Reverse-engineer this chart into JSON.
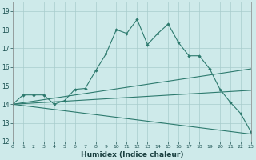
{
  "line1_x": [
    0,
    1,
    2,
    3,
    4,
    5,
    6,
    7,
    8,
    9,
    10,
    11,
    12,
    13,
    14,
    15,
    16,
    17,
    18,
    19,
    20,
    21,
    22,
    23
  ],
  "line1_y": [
    14.0,
    14.5,
    14.5,
    14.5,
    14.0,
    14.2,
    14.8,
    14.85,
    15.8,
    16.7,
    18.0,
    17.8,
    18.55,
    17.2,
    17.8,
    18.3,
    17.3,
    16.6,
    16.6,
    15.9,
    14.8,
    14.1,
    13.5,
    12.5
  ],
  "line2_x": [
    0,
    23
  ],
  "line2_y": [
    14.0,
    15.9
  ],
  "line3_x": [
    0,
    23
  ],
  "line3_y": [
    14.0,
    14.75
  ],
  "line4_x": [
    0,
    23
  ],
  "line4_y": [
    14.0,
    12.4
  ],
  "color": "#2d7a6e",
  "bg_color": "#ceeaea",
  "grid_color": "#a8cccc",
  "xlabel": "Humidex (Indice chaleur)",
  "xlim": [
    0,
    23
  ],
  "ylim": [
    12,
    19.5
  ],
  "yticks": [
    12,
    13,
    14,
    15,
    16,
    17,
    18,
    19
  ],
  "xticks": [
    0,
    1,
    2,
    3,
    4,
    5,
    6,
    7,
    8,
    9,
    10,
    11,
    12,
    13,
    14,
    15,
    16,
    17,
    18,
    19,
    20,
    21,
    22,
    23
  ]
}
